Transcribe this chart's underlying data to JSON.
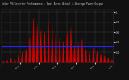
{
  "title": "Solar PV/Inverter Performance - East Array Actual & Average Power Output",
  "background_color": "#111111",
  "plot_bg_color": "#111111",
  "grid_color": "#ffffff",
  "bar_color": "#cc0000",
  "avg_line_color": "#2222ff",
  "avg_line_value": 0.32,
  "ylim": [
    0,
    1.05
  ],
  "title_color": "#cccccc",
  "tick_color": "#cccccc",
  "ytick_vals": [
    0.2,
    0.4,
    0.6,
    0.8,
    1.0
  ],
  "ytick_labels": [
    "0.2",
    "0.4",
    "0.6",
    "0.8",
    "1"
  ],
  "n_points": 200,
  "days": 30
}
